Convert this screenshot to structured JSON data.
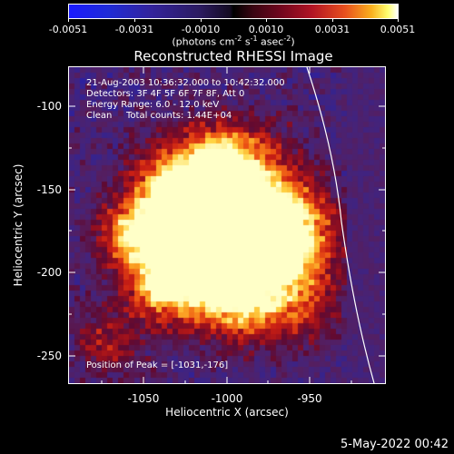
{
  "colorbar": {
    "ticks": [
      "-0.0051",
      "-0.0031",
      "-0.0010",
      "0.0010",
      "0.0031",
      "0.0051"
    ],
    "units_prefix": "(photons cm",
    "units_exp1": "-2",
    "units_mid1": " s",
    "units_exp2": "-1",
    "units_mid2": " asec",
    "units_exp3": "-2",
    "units_suffix": ")"
  },
  "title": "Reconstructed RHESSI Image",
  "info": {
    "time": "21-Aug-2003 10:36:32.000 to 10:42:32.000",
    "detectors": "Detectors: 3F 4F 5F 6F 7F 8F, Att 0",
    "energy": "Energy Range: 6.0 - 12.0 keV",
    "method": "Clean",
    "counts": "Total counts: 1.44E+04",
    "peak": "Position of Peak = [-1031,-176]"
  },
  "chart_data": {
    "type": "heatmap",
    "title": "Reconstructed RHESSI Image",
    "xlabel": "Heliocentric X (arcsec)",
    "ylabel": "Heliocentric Y (arcsec)",
    "xlim": [
      -1096,
      -906
    ],
    "ylim": [
      -270,
      -80
    ],
    "xticks": [
      "-1050",
      "-1000",
      "-950"
    ],
    "yticks": [
      "-100",
      "-150",
      "-200",
      "-250"
    ],
    "colorbar_range": [
      -0.0051,
      0.0051
    ],
    "peak": [
      -1031,
      -176
    ]
  },
  "datestamp": "5-May-2022 00:42"
}
